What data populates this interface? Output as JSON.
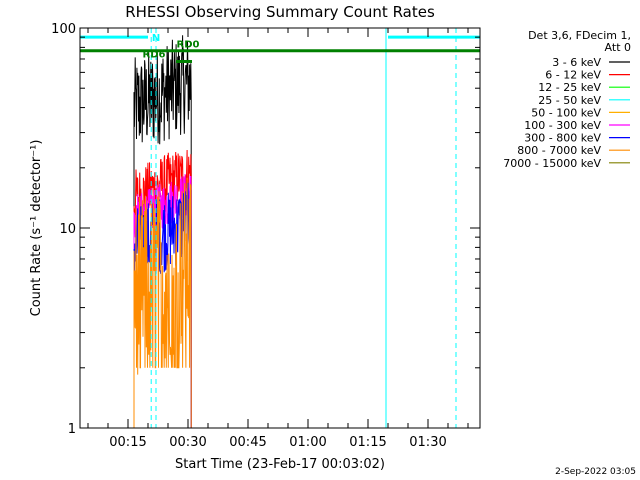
{
  "chart_data": {
    "type": "line",
    "title": "RHESSI Observing Summary Count Rates",
    "xlabel": "Start Time (23-Feb-17 00:03:02)",
    "ylabel": "Count Rate (s⁻¹ detector⁻¹)",
    "yscale": "log",
    "ylim": [
      1,
      100
    ],
    "xlim_minutes": [
      3.0,
      103.0
    ],
    "x_ticks": [
      {
        "minutes": 15,
        "label": "00:15"
      },
      {
        "minutes": 30,
        "label": "00:30"
      },
      {
        "minutes": 45,
        "label": "00:45"
      },
      {
        "minutes": 60,
        "label": "01:00"
      },
      {
        "minutes": 75,
        "label": "01:15"
      },
      {
        "minutes": 90,
        "label": "01:30"
      }
    ],
    "y_ticks": [
      {
        "value": 1,
        "label": "1"
      },
      {
        "value": 10,
        "label": "10"
      },
      {
        "value": 100,
        "label": "100"
      }
    ],
    "legend_header": [
      "Det 3,6, FDecim 1,",
      "Att 0"
    ],
    "series": [
      {
        "name": "3 - 6 keV",
        "color": "#000000",
        "base": 40,
        "spread": 0.25
      },
      {
        "name": "6 - 12 keV",
        "color": "#ff0000",
        "base": 14,
        "spread": 0.15
      },
      {
        "name": "12 - 25 keV",
        "color": "#00ff00",
        "base": 0,
        "spread": 0
      },
      {
        "name": "25 - 50 keV",
        "color": "#00ffff",
        "base": 0,
        "spread": 0
      },
      {
        "name": "50 - 100 keV",
        "color": "#ffaf00",
        "base": 0,
        "spread": 0
      },
      {
        "name": "100 - 300 keV",
        "color": "#ff00ff",
        "base": 11,
        "spread": 0.12
      },
      {
        "name": "300 - 800 keV",
        "color": "#0000ff",
        "base": 8,
        "spread": 0.2
      },
      {
        "name": "800 - 7000 keV",
        "color": "#ff8c00",
        "base": 5,
        "spread": 0.45
      },
      {
        "name": "7000 - 15000 keV",
        "color": "#808000",
        "base": 0,
        "spread": 0
      }
    ],
    "burst_window_minutes": [
      16.5,
      30.8
    ],
    "status_bars": [
      {
        "label": "N",
        "color": "#00ffff",
        "value": 90,
        "segments": [
          [
            3.0,
            20.0
          ],
          [
            80.0,
            103.0
          ]
        ],
        "label_at": 22.0
      },
      {
        "label": "",
        "color": "#008000",
        "value": 77,
        "segments": [
          [
            3.0,
            103.0
          ]
        ],
        "label_at": null
      },
      {
        "label": "RD0",
        "color": "#008000",
        "value": 77,
        "segments": [],
        "label_at": 30.0
      },
      {
        "label": "RD6",
        "color": "#008000",
        "value": 68,
        "segments": [
          [
            27.0,
            31.0
          ]
        ],
        "label_at": 21.5
      }
    ],
    "vertical_markers": [
      {
        "minutes": 79.5,
        "style": "solid",
        "color": "#00ffff"
      },
      {
        "minutes": 97.0,
        "style": "dashed",
        "color": "#00ffff"
      },
      {
        "minutes": 20.8,
        "style": "dashed",
        "color": "#00ffff"
      },
      {
        "minutes": 22.0,
        "style": "dashed",
        "color": "#00ffff"
      }
    ],
    "footer_date": "2-Sep-2022 03:05"
  }
}
